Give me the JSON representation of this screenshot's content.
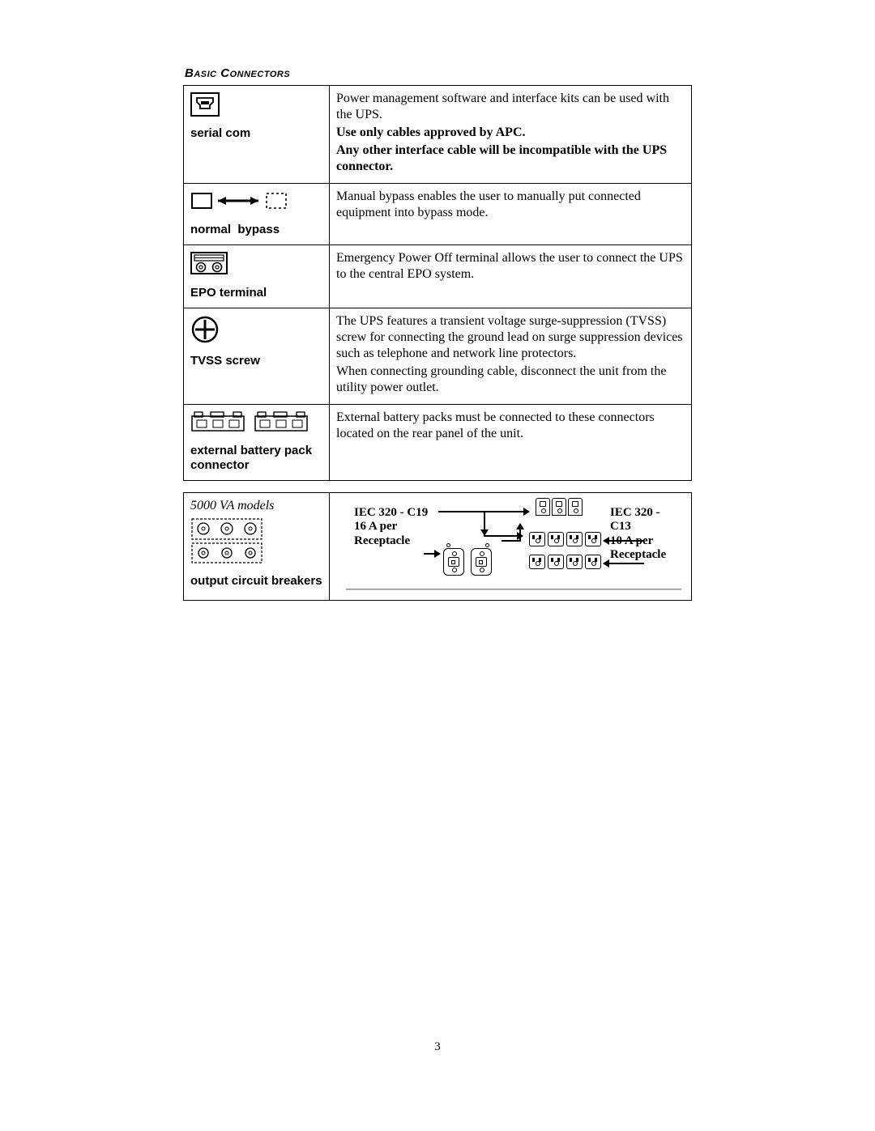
{
  "section_title": "Basic Connectors",
  "rows": [
    {
      "label": "serial com",
      "desc": "<p>Power management software and interface kits can be used with the UPS.</p><p><b>Use only cables approved by APC.</b></p><p><b>Any other interface cable will be incompatible with the UPS connector.</b></p>"
    },
    {
      "label": "normal&nbsp;&nbsp;bypass",
      "desc": "<p>Manual bypass enables the user to manually put connected equipment into bypass mode.</p>"
    },
    {
      "label": "EPO terminal",
      "desc": "<p>Emergency Power Off terminal allows the user to connect the UPS to the central EPO system.</p>"
    },
    {
      "label": "TVSS screw",
      "desc": "<p>The UPS features a transient voltage surge-suppression (TVSS) screw for connecting the ground lead on surge suppression devices such as telephone and network line protectors.</p><p>When connecting grounding cable, disconnect the unit from the utility power outlet.</p>"
    },
    {
      "label": "external battery pack connector",
      "desc": "<p>External battery packs must be connected to these connectors located on the rear panel of the unit.</p>"
    }
  ],
  "output_section": {
    "model_note": "5000 VA models",
    "left_label": "output circuit breakers",
    "c19_label": "IEC 320 - C19<br>16 A per<br>Receptacle",
    "c13_label": "IEC 320 - C13<br>10 A per<br>Receptacle"
  },
  "page_number": "3",
  "colors": {
    "border": "#000000",
    "text": "#000000",
    "background": "#ffffff"
  },
  "typography": {
    "body_family": "Times New Roman",
    "label_family": "Arial",
    "body_size_pt": 12,
    "label_size_pt": 11,
    "title_size_pt": 11
  }
}
